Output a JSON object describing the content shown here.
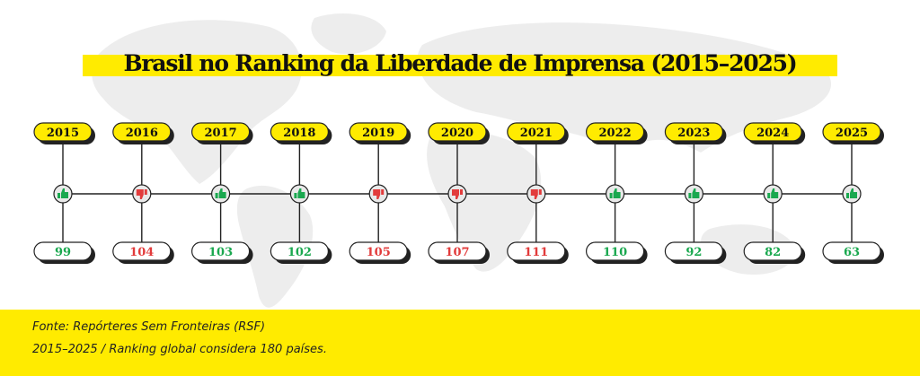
{
  "title": "Brasil no Ranking da Liberdade de Imprensa (2015–2025)",
  "chart_data": {
    "type": "timeline",
    "title": "Brasil no Ranking da Liberdade de Imprensa (2015–2025)",
    "x": [
      "2015",
      "2016",
      "2017",
      "2018",
      "2019",
      "2020",
      "2021",
      "2022",
      "2023",
      "2024",
      "2025"
    ],
    "values": [
      99,
      104,
      103,
      102,
      105,
      107,
      111,
      110,
      92,
      82,
      63
    ],
    "trend": [
      "up",
      "down",
      "up",
      "up",
      "down",
      "down",
      "down",
      "up",
      "up",
      "up",
      "up"
    ]
  },
  "colors": {
    "accent": "#ffeb00",
    "good": "#1aa84f",
    "bad": "#e23b3b",
    "line": "#222222",
    "map": "#ececec"
  },
  "icons": {
    "up": "thumbs-up-icon",
    "down": "thumbs-down-icon"
  },
  "footer": {
    "source": "Fonte: Repórteres Sem Fronteiras (RSF)",
    "note": "2015–2025 / Ranking global considera 180 países."
  }
}
